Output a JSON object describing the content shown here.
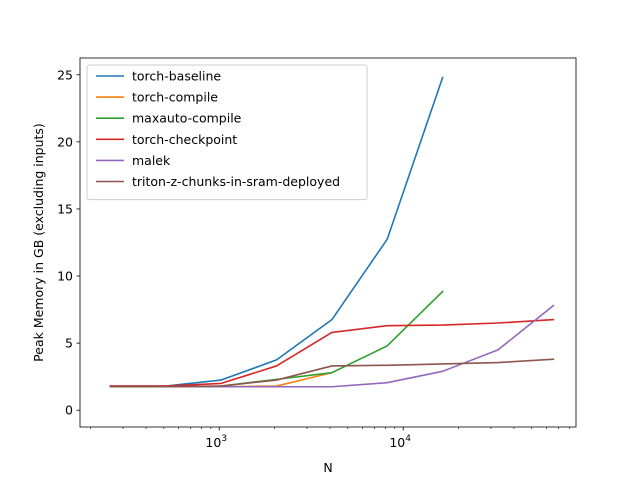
{
  "chart_data": {
    "type": "line",
    "title": "",
    "xlabel": "N",
    "ylabel": "Peak Memory in GB (excluding inputs)",
    "xscale": "log",
    "xlim": [
      175,
      87000
    ],
    "ylim": [
      -1.25,
      26.25
    ],
    "y_ticks": [
      0,
      5,
      10,
      15,
      20,
      25
    ],
    "x_major_ticks": [
      {
        "value": 1000,
        "base": "10",
        "exp": "3"
      },
      {
        "value": 10000,
        "base": "10",
        "exp": "4"
      }
    ],
    "x_minor_ticks": [
      200,
      300,
      400,
      500,
      600,
      700,
      800,
      900,
      2000,
      3000,
      4000,
      5000,
      6000,
      7000,
      8000,
      9000,
      20000,
      30000,
      40000,
      50000,
      60000,
      70000,
      80000
    ],
    "grid": false,
    "legend_position": "top-left",
    "series": [
      {
        "name": "torch-baseline",
        "color": "#1f77b4",
        "x": [
          256,
          512,
          1024,
          2048,
          4096,
          8192,
          16384
        ],
        "values": [
          1.8,
          1.8,
          2.25,
          3.75,
          6.75,
          12.75,
          24.8
        ]
      },
      {
        "name": "torch-compile",
        "color": "#ff7f0e",
        "x": [
          256,
          512,
          1024,
          2048,
          4096
        ],
        "values": [
          1.75,
          1.75,
          1.75,
          1.8,
          2.8
        ]
      },
      {
        "name": "maxauto-compile",
        "color": "#2ca02c",
        "x": [
          256,
          512,
          1024,
          2048,
          4096,
          8192,
          16384
        ],
        "values": [
          1.75,
          1.75,
          1.8,
          2.3,
          2.8,
          4.8,
          8.85
        ]
      },
      {
        "name": "torch-checkpoint",
        "color": "#d62728",
        "x": [
          256,
          512,
          1024,
          2048,
          4096,
          8192,
          16384,
          32768,
          65536
        ],
        "values": [
          1.8,
          1.8,
          2.0,
          3.3,
          5.8,
          6.3,
          6.35,
          6.5,
          6.75
        ]
      },
      {
        "name": "malek",
        "color": "#9467bd",
        "x": [
          256,
          512,
          1024,
          2048,
          4096,
          8192,
          16384,
          32768,
          65536
        ],
        "values": [
          1.75,
          1.75,
          1.75,
          1.75,
          1.75,
          2.05,
          2.9,
          4.5,
          7.8
        ]
      },
      {
        "name": "triton-z-chunks-in-sram-deployed",
        "color": "#8c564b",
        "x": [
          256,
          512,
          1024,
          2048,
          4096,
          8192,
          16384,
          32768,
          65536
        ],
        "values": [
          1.75,
          1.75,
          1.8,
          2.25,
          3.3,
          3.35,
          3.45,
          3.55,
          3.8
        ]
      }
    ]
  }
}
